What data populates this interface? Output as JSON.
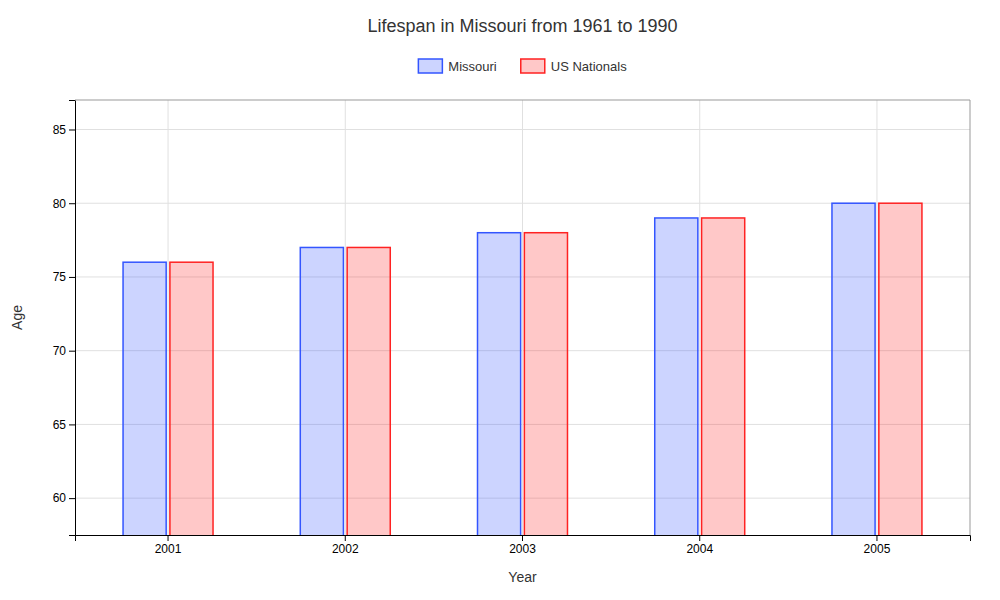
{
  "chart_data": {
    "type": "bar",
    "title": "Lifespan in Missouri from 1961 to 1990",
    "xlabel": "Year",
    "ylabel": "Age",
    "categories": [
      "2001",
      "2002",
      "2003",
      "2004",
      "2005"
    ],
    "series": [
      {
        "name": "Missouri",
        "color": "#3355ff",
        "values": [
          76,
          77,
          78,
          79,
          80
        ]
      },
      {
        "name": "US Nationals",
        "color": "#ff2222",
        "values": [
          76,
          77,
          78,
          79,
          80
        ]
      }
    ],
    "ylim": [
      57.5,
      87
    ],
    "yticks": [
      60,
      65,
      70,
      75,
      80,
      85
    ],
    "grid": true,
    "legend": "top"
  }
}
